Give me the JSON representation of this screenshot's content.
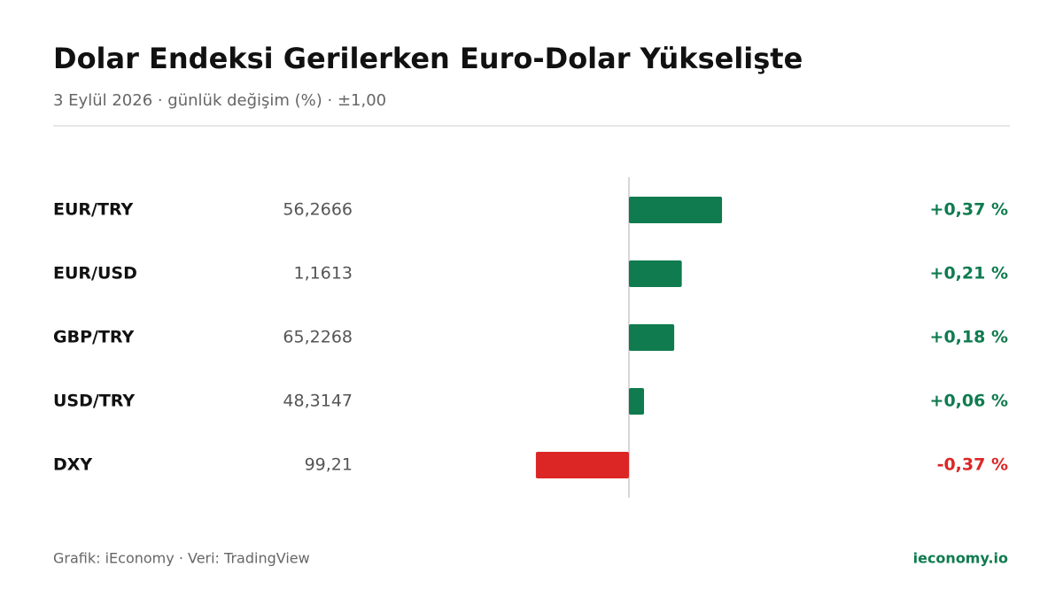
{
  "chart_data": {
    "type": "diverging-bar",
    "title": "Dolar Endeksi Gerilerken Euro-Dolar Yükselişte",
    "subtitle": "3 Eylül 2026 · günlük değişim (%) · ±1,00",
    "categories": [
      "EUR/TRY",
      "EUR/USD",
      "GBP/TRY",
      "USD/TRY",
      "DXY"
    ],
    "prices": [
      "56,2666",
      "1,1613",
      "65,2268",
      "48,3147",
      "99,21"
    ],
    "values": [
      0.37,
      0.21,
      0.18,
      0.06,
      -0.37
    ],
    "value_labels": [
      "+0,37 %",
      "+0,21 %",
      "+0,18 %",
      "+0,06 %",
      "-0,37 %"
    ],
    "xlim": [
      -1,
      1
    ],
    "color_up": "#0f7b4f",
    "color_down": "#dc2626",
    "source": "Grafik: iEconomy · Veri: TradingView",
    "brand": "ieconomy.io"
  }
}
